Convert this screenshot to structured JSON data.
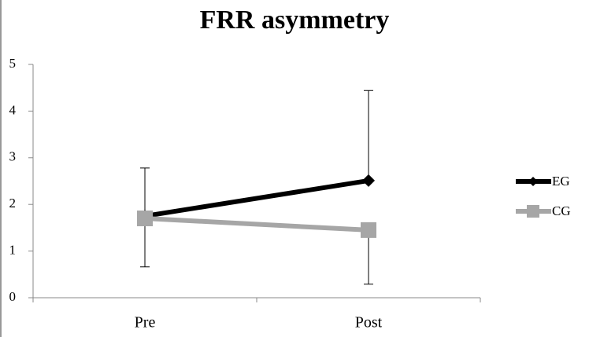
{
  "chart_data": {
    "type": "line",
    "title": "FRR asymmetry",
    "categories": [
      "Pre",
      "Post"
    ],
    "series": [
      {
        "name": "EG",
        "color": "#000000",
        "marker": "diamond",
        "values": [
          1.75,
          2.51
        ],
        "errors": [
          1.03,
          1.93
        ],
        "error_direction": "plus"
      },
      {
        "name": "CG",
        "color": "#a6a6a6",
        "marker": "square",
        "values": [
          1.7,
          1.45
        ],
        "errors": [
          1.04,
          1.16
        ],
        "error_direction": "minus"
      }
    ],
    "ylim": [
      0,
      5
    ],
    "yticks": [
      0,
      1,
      2,
      3,
      4,
      5
    ],
    "grid": false,
    "legend": "right"
  }
}
